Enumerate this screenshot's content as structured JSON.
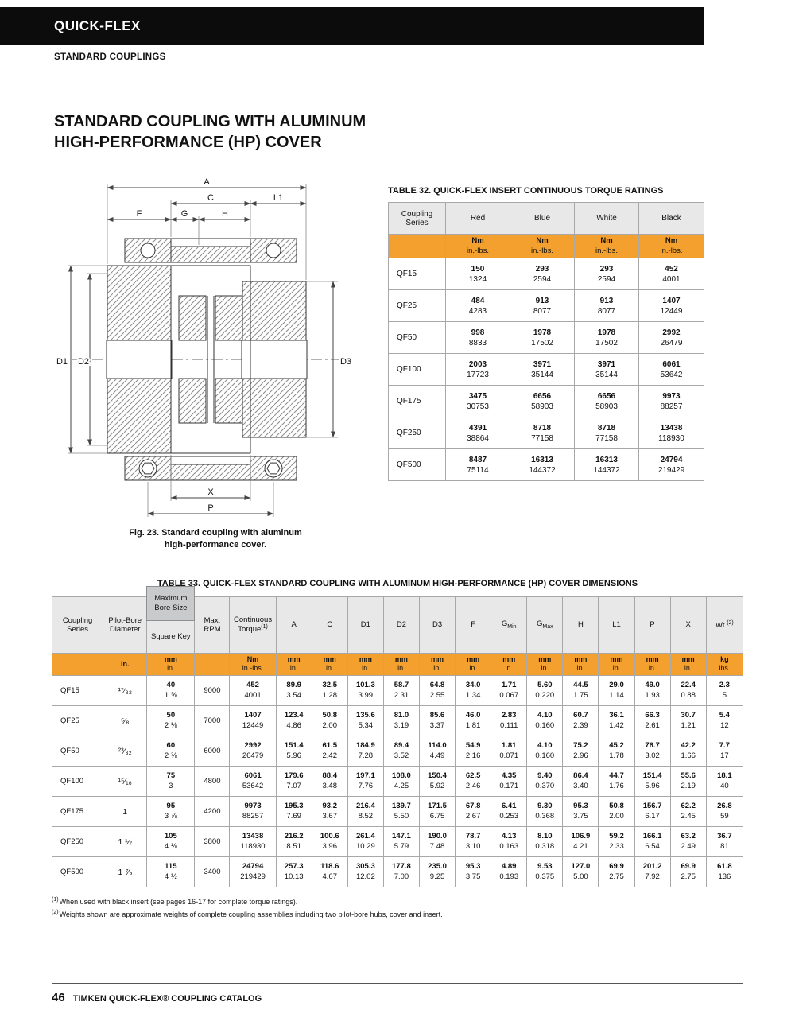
{
  "colors": {
    "accent": "#F4A02E",
    "header_gray": "#E8E8E9",
    "header_gray_dark": "#C9CACB",
    "bar_black": "#0C0C0C"
  },
  "header": {
    "brand": "QUICK-FLEX",
    "subtitle": "STANDARD COUPLINGS"
  },
  "title": {
    "line1": "STANDARD COUPLING WITH ALUMINUM",
    "line2": "HIGH-PERFORMANCE (HP) COVER"
  },
  "figure": {
    "caption_line1": "Fig. 23. Standard coupling with aluminum",
    "caption_line2": "high-performance cover.",
    "labels": {
      "A": "A",
      "C": "C",
      "L1": "L1",
      "F": "F",
      "G": "G",
      "H": "H",
      "D1": "D1",
      "D2": "D2",
      "D3": "D3",
      "X": "X",
      "P": "P"
    }
  },
  "table32": {
    "title": "TABLE 32. QUICK-FLEX INSERT CONTINUOUS TORQUE RATINGS",
    "col_series": "Coupling Series",
    "columns": [
      "Red",
      "Blue",
      "White",
      "Black"
    ],
    "unit": {
      "top": "Nm",
      "bottom": "in.-lbs."
    },
    "rows": [
      {
        "series": "QF15",
        "cells": [
          [
            "150",
            "1324"
          ],
          [
            "293",
            "2594"
          ],
          [
            "293",
            "2594"
          ],
          [
            "452",
            "4001"
          ]
        ]
      },
      {
        "series": "QF25",
        "cells": [
          [
            "484",
            "4283"
          ],
          [
            "913",
            "8077"
          ],
          [
            "913",
            "8077"
          ],
          [
            "1407",
            "12449"
          ]
        ]
      },
      {
        "series": "QF50",
        "cells": [
          [
            "998",
            "8833"
          ],
          [
            "1978",
            "17502"
          ],
          [
            "1978",
            "17502"
          ],
          [
            "2992",
            "26479"
          ]
        ]
      },
      {
        "series": "QF100",
        "cells": [
          [
            "2003",
            "17723"
          ],
          [
            "3971",
            "35144"
          ],
          [
            "3971",
            "35144"
          ],
          [
            "6061",
            "53642"
          ]
        ]
      },
      {
        "series": "QF175",
        "cells": [
          [
            "3475",
            "30753"
          ],
          [
            "6656",
            "58903"
          ],
          [
            "6656",
            "58903"
          ],
          [
            "9973",
            "88257"
          ]
        ]
      },
      {
        "series": "QF250",
        "cells": [
          [
            "4391",
            "38864"
          ],
          [
            "8718",
            "77158"
          ],
          [
            "8718",
            "77158"
          ],
          [
            "13438",
            "118930"
          ]
        ]
      },
      {
        "series": "QF500",
        "cells": [
          [
            "8487",
            "75114"
          ],
          [
            "16313",
            "144372"
          ],
          [
            "16313",
            "144372"
          ],
          [
            "24794",
            "219429"
          ]
        ]
      }
    ]
  },
  "table33": {
    "title": "TABLE 33. QUICK-FLEX STANDARD COUPLING WITH ALUMINUM HIGH-PERFORMANCE (HP) COVER DIMENSIONS",
    "headers": {
      "series": "Coupling Series",
      "pilot": "Pilot-Bore Diameter",
      "max_bore_top": "Maximum Bore Size",
      "max_bore_bottom": "Square Key",
      "rpm": "Max. RPM",
      "torque": "Continuous Torque",
      "torque_sup": "(1)",
      "a": "A",
      "c": "C",
      "d1": "D1",
      "d2": "D2",
      "d3": "D3",
      "f": "F",
      "g": "G",
      "g_min_sub": "Min",
      "g_max_sub": "Max",
      "h": "H",
      "l1": "L1",
      "p": "P",
      "x": "X",
      "wt": "Wt.",
      "wt_sup": "(2)"
    },
    "units": [
      {
        "top": "",
        "bottom": ""
      },
      {
        "top": "in.",
        "bottom": ""
      },
      {
        "top": "mm",
        "bottom": "in."
      },
      {
        "top": "",
        "bottom": ""
      },
      {
        "top": "Nm",
        "bottom": "in.-lbs."
      },
      {
        "top": "mm",
        "bottom": "in."
      },
      {
        "top": "mm",
        "bottom": "in."
      },
      {
        "top": "mm",
        "bottom": "in."
      },
      {
        "top": "mm",
        "bottom": "in."
      },
      {
        "top": "mm",
        "bottom": "in."
      },
      {
        "top": "mm",
        "bottom": "in."
      },
      {
        "top": "mm",
        "bottom": "in."
      },
      {
        "top": "mm",
        "bottom": "in."
      },
      {
        "top": "mm",
        "bottom": "in."
      },
      {
        "top": "mm",
        "bottom": "in."
      },
      {
        "top": "mm",
        "bottom": "in."
      },
      {
        "top": "mm",
        "bottom": "in."
      },
      {
        "top": "kg",
        "bottom": "lbs."
      }
    ],
    "rows": [
      {
        "series": "QF15",
        "pilot": "¹⁷⁄₃₂",
        "bore": [
          "40",
          "1 ⅝"
        ],
        "rpm": "9000",
        "cells": [
          [
            "452",
            "4001"
          ],
          [
            "89.9",
            "3.54"
          ],
          [
            "32.5",
            "1.28"
          ],
          [
            "101.3",
            "3.99"
          ],
          [
            "58.7",
            "2.31"
          ],
          [
            "64.8",
            "2.55"
          ],
          [
            "34.0",
            "1.34"
          ],
          [
            "1.71",
            "0.067"
          ],
          [
            "5.60",
            "0.220"
          ],
          [
            "44.5",
            "1.75"
          ],
          [
            "29.0",
            "1.14"
          ],
          [
            "49.0",
            "1.93"
          ],
          [
            "22.4",
            "0.88"
          ],
          [
            "2.3",
            "5"
          ]
        ]
      },
      {
        "series": "QF25",
        "pilot": "⁵⁄₈",
        "bore": [
          "50",
          "2 ⅛"
        ],
        "rpm": "7000",
        "cells": [
          [
            "1407",
            "12449"
          ],
          [
            "123.4",
            "4.86"
          ],
          [
            "50.8",
            "2.00"
          ],
          [
            "135.6",
            "5.34"
          ],
          [
            "81.0",
            "3.19"
          ],
          [
            "85.6",
            "3.37"
          ],
          [
            "46.0",
            "1.81"
          ],
          [
            "2.83",
            "0.111"
          ],
          [
            "4.10",
            "0.160"
          ],
          [
            "60.7",
            "2.39"
          ],
          [
            "36.1",
            "1.42"
          ],
          [
            "66.3",
            "2.61"
          ],
          [
            "30.7",
            "1.21"
          ],
          [
            "5.4",
            "12"
          ]
        ]
      },
      {
        "series": "QF50",
        "pilot": "²³⁄₃₂",
        "bore": [
          "60",
          "2 ⅜"
        ],
        "rpm": "6000",
        "cells": [
          [
            "2992",
            "26479"
          ],
          [
            "151.4",
            "5.96"
          ],
          [
            "61.5",
            "2.42"
          ],
          [
            "184.9",
            "7.28"
          ],
          [
            "89.4",
            "3.52"
          ],
          [
            "114.0",
            "4.49"
          ],
          [
            "54.9",
            "2.16"
          ],
          [
            "1.81",
            "0.071"
          ],
          [
            "4.10",
            "0.160"
          ],
          [
            "75.2",
            "2.96"
          ],
          [
            "45.2",
            "1.78"
          ],
          [
            "76.7",
            "3.02"
          ],
          [
            "42.2",
            "1.66"
          ],
          [
            "7.7",
            "17"
          ]
        ]
      },
      {
        "series": "QF100",
        "pilot": "¹⁵⁄₁₆",
        "bore": [
          "75",
          "3"
        ],
        "rpm": "4800",
        "cells": [
          [
            "6061",
            "53642"
          ],
          [
            "179.6",
            "7.07"
          ],
          [
            "88.4",
            "3.48"
          ],
          [
            "197.1",
            "7.76"
          ],
          [
            "108.0",
            "4.25"
          ],
          [
            "150.4",
            "5.92"
          ],
          [
            "62.5",
            "2.46"
          ],
          [
            "4.35",
            "0.171"
          ],
          [
            "9.40",
            "0.370"
          ],
          [
            "86.4",
            "3.40"
          ],
          [
            "44.7",
            "1.76"
          ],
          [
            "151.4",
            "5.96"
          ],
          [
            "55.6",
            "2.19"
          ],
          [
            "18.1",
            "40"
          ]
        ]
      },
      {
        "series": "QF175",
        "pilot": "1",
        "bore": [
          "95",
          "3 ⅞"
        ],
        "rpm": "4200",
        "cells": [
          [
            "9973",
            "88257"
          ],
          [
            "195.3",
            "7.69"
          ],
          [
            "93.2",
            "3.67"
          ],
          [
            "216.4",
            "8.52"
          ],
          [
            "139.7",
            "5.50"
          ],
          [
            "171.5",
            "6.75"
          ],
          [
            "67.8",
            "2.67"
          ],
          [
            "6.41",
            "0.253"
          ],
          [
            "9.30",
            "0.368"
          ],
          [
            "95.3",
            "3.75"
          ],
          [
            "50.8",
            "2.00"
          ],
          [
            "156.7",
            "6.17"
          ],
          [
            "62.2",
            "2.45"
          ],
          [
            "26.8",
            "59"
          ]
        ]
      },
      {
        "series": "QF250",
        "pilot": "1 ½",
        "bore": [
          "105",
          "4 ⅛"
        ],
        "rpm": "3800",
        "cells": [
          [
            "13438",
            "118930"
          ],
          [
            "216.2",
            "8.51"
          ],
          [
            "100.6",
            "3.96"
          ],
          [
            "261.4",
            "10.29"
          ],
          [
            "147.1",
            "5.79"
          ],
          [
            "190.0",
            "7.48"
          ],
          [
            "78.7",
            "3.10"
          ],
          [
            "4.13",
            "0.163"
          ],
          [
            "8.10",
            "0.318"
          ],
          [
            "106.9",
            "4.21"
          ],
          [
            "59.2",
            "2.33"
          ],
          [
            "166.1",
            "6.54"
          ],
          [
            "63.2",
            "2.49"
          ],
          [
            "36.7",
            "81"
          ]
        ]
      },
      {
        "series": "QF500",
        "pilot": "1 ⅞",
        "bore": [
          "115",
          "4 ½"
        ],
        "rpm": "3400",
        "cells": [
          [
            "24794",
            "219429"
          ],
          [
            "257.3",
            "10.13"
          ],
          [
            "118.6",
            "4.67"
          ],
          [
            "305.3",
            "12.02"
          ],
          [
            "177.8",
            "7.00"
          ],
          [
            "235.0",
            "9.25"
          ],
          [
            "95.3",
            "3.75"
          ],
          [
            "4.89",
            "0.193"
          ],
          [
            "9.53",
            "0.375"
          ],
          [
            "127.0",
            "5.00"
          ],
          [
            "69.9",
            "2.75"
          ],
          [
            "201.2",
            "7.92"
          ],
          [
            "69.9",
            "2.75"
          ],
          [
            "61.8",
            "136"
          ]
        ]
      }
    ]
  },
  "footnotes": [
    {
      "sup": "(1)",
      "text": "When used with black insert (see pages 16-17 for complete torque ratings)."
    },
    {
      "sup": "(2)",
      "text": "Weights shown are approximate weights of complete coupling assemblies including two pilot-bore hubs, cover and insert."
    }
  ],
  "footer": {
    "page": "46",
    "text": "TIMKEN QUICK-FLEX® COUPLING CATALOG"
  }
}
